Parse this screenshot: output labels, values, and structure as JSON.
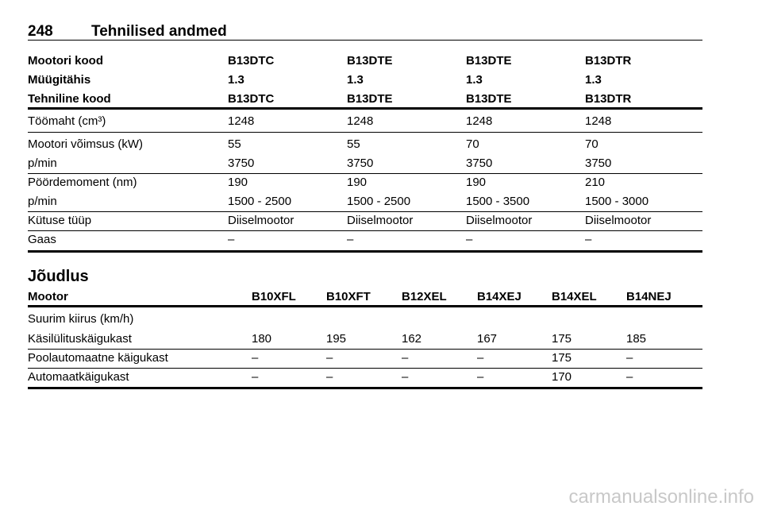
{
  "header": {
    "page_number": "248",
    "title": "Tehnilised andmed"
  },
  "table1": {
    "header_rows": [
      [
        "Mootori kood",
        "B13DTC",
        "B13DTE",
        "B13DTE",
        "B13DTR"
      ],
      [
        "Müügitähis",
        "1.3",
        "1.3",
        "1.3",
        "1.3"
      ],
      [
        "Tehniline kood",
        "B13DTC",
        "B13DTE",
        "B13DTE",
        "B13DTR"
      ]
    ],
    "rows": [
      [
        "Töömaht (cm³)",
        "1248",
        "1248",
        "1248",
        "1248"
      ],
      [
        "Mootori võimsus (kW)",
        "55",
        "55",
        "70",
        "70"
      ],
      [
        "p/min",
        "3750",
        "3750",
        "3750",
        "3750"
      ],
      [
        "Pöördemoment (nm)",
        "190",
        "190",
        "190",
        "210"
      ],
      [
        "p/min",
        "1500 - 2500",
        "1500 - 2500",
        "1500 - 3500",
        "1500 - 3000"
      ],
      [
        "Kütuse tüüp",
        "Diiselmootor",
        "Diiselmootor",
        "Diiselmootor",
        "Diiselmootor"
      ],
      [
        "Gaas",
        "–",
        "–",
        "–",
        "–"
      ]
    ]
  },
  "section_title": "Jõudlus",
  "table2": {
    "header": [
      "Mootor",
      "B10XFL",
      "B10XFT",
      "B12XEL",
      "B14XEJ",
      "B14XEL",
      "B14NEJ"
    ],
    "rows": [
      [
        "Suurim kiirus (km/h)"
      ],
      [
        "Käsilülituskäigukast",
        "180",
        "195",
        "162",
        "167",
        "175",
        "185"
      ],
      [
        "Poolautomaatne käigukast",
        "–",
        "–",
        "–",
        "–",
        "175",
        "–"
      ],
      [
        "Automaatkäigukast",
        "–",
        "–",
        "–",
        "–",
        "170",
        "–"
      ]
    ]
  },
  "watermark": "carmanualsonline.info"
}
